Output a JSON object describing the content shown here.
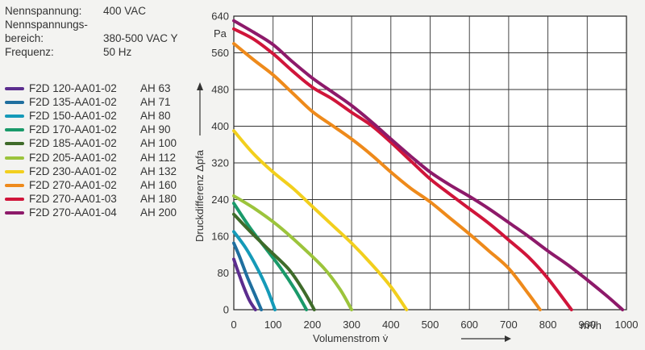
{
  "specs": [
    {
      "label": "Nennspannung:",
      "value": "400 VAC"
    },
    {
      "label": "Nennspannungs-",
      "value": ""
    },
    {
      "label": "bereich:",
      "value": "380-500 VAC Y"
    },
    {
      "label": "Frequenz:",
      "value": "50 Hz"
    }
  ],
  "chart_data": {
    "type": "line",
    "title": "",
    "xlabel": "Volumenstrom v̇",
    "ylabel": "Druckdifferenz Δpfa",
    "x_unit": "m³/h",
    "y_unit": "Pa",
    "xlim": [
      0,
      1000
    ],
    "ylim": [
      0,
      640
    ],
    "x_ticks": [
      "0",
      "100",
      "200",
      "300",
      "400",
      "500",
      "600",
      "700",
      "800",
      "900",
      "1000"
    ],
    "y_ticks": [
      "0",
      "80",
      "160",
      "240",
      "320",
      "400",
      "480",
      "560",
      "640"
    ],
    "grid": true,
    "series": [
      {
        "name": "F2D 120-AA01-02",
        "size": "AH 63",
        "color": "#5b2d8e",
        "x": [
          0,
          10,
          25,
          40,
          55
        ],
        "y": [
          110,
          85,
          50,
          20,
          0
        ]
      },
      {
        "name": "F2D 135-AA01-02",
        "size": "AH 71",
        "color": "#1f6f9f",
        "x": [
          0,
          15,
          35,
          55,
          70
        ],
        "y": [
          145,
          115,
          70,
          30,
          0
        ]
      },
      {
        "name": "F2D 150-AA01-02",
        "size": "AH 80",
        "color": "#159ab8",
        "x": [
          0,
          30,
          60,
          85,
          105
        ],
        "y": [
          170,
          135,
          90,
          45,
          0
        ]
      },
      {
        "name": "F2D 170-AA01-02",
        "size": "AH 90",
        "color": "#1a9a6a",
        "x": [
          0,
          40,
          80,
          120,
          155,
          185
        ],
        "y": [
          232,
          180,
          135,
          90,
          45,
          0
        ]
      },
      {
        "name": "F2D 185-AA01-02",
        "size": "AH 100",
        "color": "#3f6b2a",
        "x": [
          0,
          40,
          90,
          140,
          175,
          205
        ],
        "y": [
          208,
          172,
          130,
          88,
          45,
          0
        ]
      },
      {
        "name": "F2D 205-AA01-02",
        "size": "AH 112",
        "color": "#9cc43c",
        "x": [
          0,
          50,
          110,
          170,
          230,
          270,
          300
        ],
        "y": [
          248,
          222,
          185,
          140,
          90,
          45,
          0
        ]
      },
      {
        "name": "F2D 230-AA01-02",
        "size": "AH 132",
        "color": "#f2cf1d",
        "x": [
          0,
          50,
          100,
          150,
          200,
          250,
          300,
          350,
          400,
          440
        ],
        "y": [
          390,
          340,
          300,
          265,
          225,
          185,
          145,
          100,
          50,
          0
        ]
      },
      {
        "name": "F2D 270-AA01-02",
        "size": "AH 160",
        "color": "#ee8a1b",
        "x": [
          0,
          50,
          100,
          150,
          200,
          250,
          300,
          350,
          400,
          450,
          500,
          550,
          600,
          650,
          700,
          750,
          780
        ],
        "y": [
          580,
          545,
          512,
          472,
          432,
          402,
          372,
          338,
          300,
          265,
          235,
          200,
          165,
          128,
          90,
          35,
          0
        ]
      },
      {
        "name": "F2D 270-AA01-03",
        "size": "AH 180",
        "color": "#d0153a",
        "x": [
          0,
          50,
          100,
          150,
          200,
          250,
          300,
          350,
          400,
          450,
          500,
          550,
          600,
          650,
          700,
          750,
          800,
          860
        ],
        "y": [
          612,
          590,
          558,
          520,
          485,
          460,
          430,
          402,
          365,
          325,
          285,
          252,
          220,
          188,
          152,
          115,
          68,
          0
        ]
      },
      {
        "name": "F2D 270-AA01-04",
        "size": "AH 200",
        "color": "#8d1a6a",
        "x": [
          0,
          50,
          100,
          150,
          200,
          250,
          300,
          350,
          400,
          450,
          500,
          550,
          600,
          650,
          700,
          750,
          800,
          850,
          900,
          950,
          990
        ],
        "y": [
          630,
          605,
          578,
          540,
          505,
          475,
          445,
          410,
          372,
          335,
          300,
          272,
          247,
          220,
          190,
          160,
          128,
          98,
          65,
          30,
          0
        ]
      }
    ]
  }
}
